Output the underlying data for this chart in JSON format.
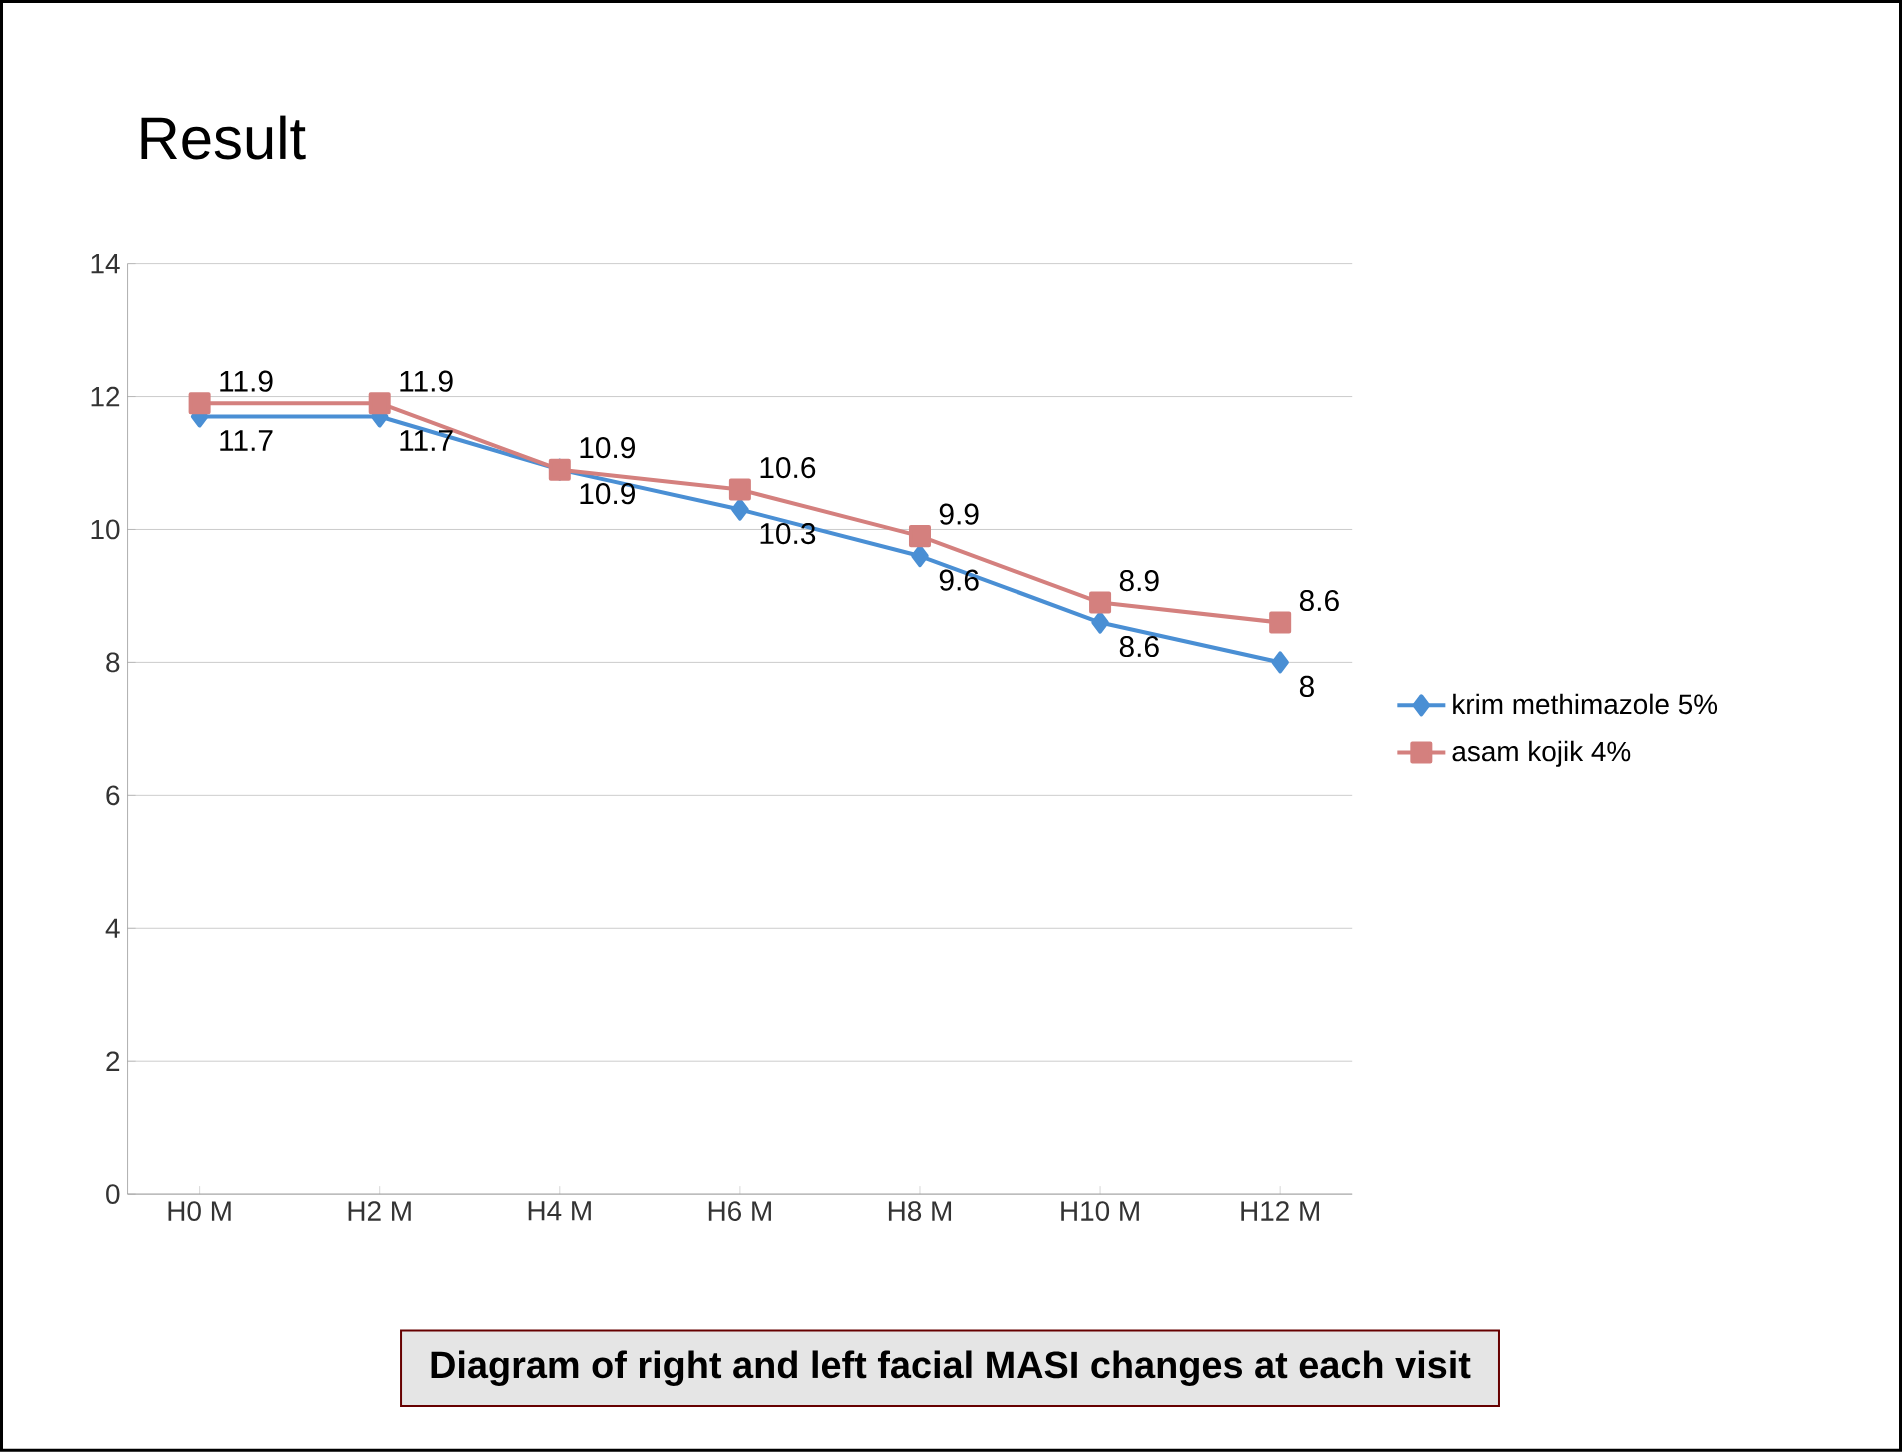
{
  "chart_data": {
    "type": "line",
    "title": "Result",
    "annotations": [
      "Diagram of right and left facial MASI changes at each visit"
    ],
    "categories": [
      "H0 M",
      "H2 M",
      "H4 M",
      "H6 M",
      "H8 M",
      "H10 M",
      "H12 M"
    ],
    "series": [
      {
        "name": "krim methimazole 5%",
        "color": "#4a8fd4",
        "marker": "diamond",
        "values": [
          11.7,
          11.7,
          10.9,
          10.3,
          9.6,
          8.6,
          8
        ]
      },
      {
        "name": "asam kojik 4%",
        "color": "#d4807e",
        "marker": "square",
        "values": [
          11.9,
          11.9,
          10.9,
          10.6,
          9.9,
          8.9,
          8.6
        ]
      }
    ],
    "ylim": [
      0,
      14
    ],
    "yticks": [
      0,
      2,
      4,
      6,
      8,
      10,
      12,
      14
    ],
    "grid": "y",
    "legend": "right",
    "data_labels": true,
    "line_style": "solid"
  }
}
